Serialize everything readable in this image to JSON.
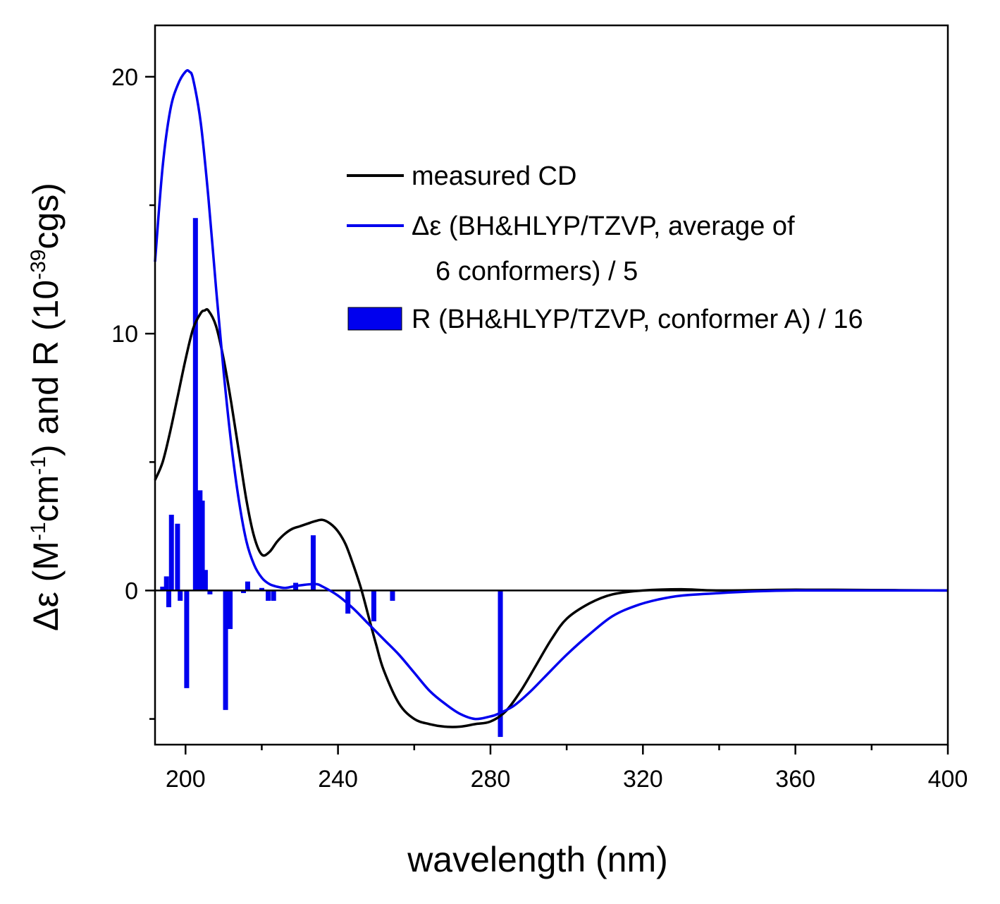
{
  "chart_data": {
    "type": "line",
    "xlabel": "wavelength (nm)",
    "ylabel": {
      "part1": "Δε (M",
      "sup1": "-1",
      "part2": "cm",
      "sup2": "-1",
      "part3": ") and R (10",
      "sup3": "-39",
      "part4": "cgs)"
    },
    "xlim": [
      192,
      400
    ],
    "ylim": [
      -6.0,
      22.0
    ],
    "x_ticks": [
      200,
      240,
      280,
      320,
      360,
      400
    ],
    "x_tick_labels": [
      "200",
      "240",
      "280",
      "320",
      "360",
      "400"
    ],
    "x_minor_ticks": [
      220,
      260,
      300,
      340,
      380
    ],
    "y_ticks": [
      0,
      10,
      20
    ],
    "y_tick_labels": [
      "0",
      "10",
      "20"
    ],
    "y_minor_ticks": [
      -5,
      5,
      15
    ],
    "colors": {
      "measured": "#000000",
      "calculated": "#0000ee",
      "bars": "#0000ee"
    },
    "series": [
      {
        "name": "measured CD",
        "kind": "line",
        "x": [
          192,
          194,
          196,
          198,
          200,
          202,
          204,
          205,
          206,
          208,
          210,
          212,
          214,
          216,
          218,
          220,
          222,
          224,
          226,
          228,
          230,
          232,
          234,
          236,
          238,
          240,
          242,
          244,
          246,
          248,
          250,
          252,
          256,
          260,
          264,
          268,
          272,
          276,
          280,
          284,
          288,
          292,
          296,
          300,
          306,
          312,
          320,
          330,
          340,
          360,
          380,
          400
        ],
        "y": [
          4.3,
          5.0,
          6.2,
          7.6,
          9.0,
          10.2,
          10.8,
          10.9,
          10.9,
          10.3,
          9.0,
          7.3,
          5.4,
          3.5,
          2.1,
          1.4,
          1.5,
          1.9,
          2.2,
          2.4,
          2.5,
          2.6,
          2.7,
          2.75,
          2.6,
          2.3,
          1.8,
          1.0,
          0.1,
          -1.0,
          -2.1,
          -3.1,
          -4.4,
          -5.0,
          -5.2,
          -5.3,
          -5.3,
          -5.2,
          -5.1,
          -4.7,
          -3.9,
          -2.9,
          -1.9,
          -1.1,
          -0.5,
          -0.15,
          0.0,
          0.05,
          0.0,
          0.03,
          0.02,
          0.0
        ]
      },
      {
        "name": "Δε (BH&HLYP/TZVP, average of 6 conformers) / 5",
        "kind": "line",
        "x": [
          192,
          194,
          196,
          198,
          200,
          201,
          202,
          204,
          206,
          208,
          210,
          212,
          214,
          216,
          218,
          220,
          222,
          224,
          226,
          228,
          230,
          234,
          236,
          240,
          244,
          248,
          252,
          256,
          260,
          264,
          268,
          272,
          276,
          280,
          282,
          286,
          290,
          294,
          300,
          306,
          312,
          318,
          324,
          330,
          340,
          350,
          360,
          380,
          400
        ],
        "y": [
          12.8,
          16.5,
          18.7,
          19.7,
          20.2,
          20.2,
          19.9,
          18.2,
          15.3,
          11.8,
          8.5,
          5.7,
          3.5,
          1.9,
          1.0,
          0.5,
          0.25,
          0.15,
          0.1,
          0.15,
          0.2,
          0.25,
          0.15,
          -0.2,
          -0.7,
          -1.3,
          -1.9,
          -2.5,
          -3.2,
          -3.9,
          -4.4,
          -4.8,
          -5.0,
          -4.9,
          -4.8,
          -4.5,
          -4.0,
          -3.4,
          -2.5,
          -1.7,
          -1.0,
          -0.6,
          -0.35,
          -0.2,
          -0.1,
          -0.03,
          0.0,
          0.0,
          0.0
        ]
      },
      {
        "name": "R (BH&HLYP/TZVP, conformer A) / 16",
        "kind": "bar",
        "width_nm": 1.3,
        "x": [
          194,
          195,
          195.6,
          196.3,
          197.9,
          198.6,
          200.3,
          202.6,
          203.8,
          204.4,
          205.2,
          206.4,
          210.5,
          211.7,
          215.2,
          216.3,
          220,
          221.7,
          223.1,
          228.9,
          233.5,
          242.6,
          249.4,
          254.3,
          282.6
        ],
        "y": [
          0.15,
          0.55,
          -0.65,
          2.95,
          2.6,
          -0.4,
          -3.8,
          14.5,
          3.9,
          3.5,
          0.8,
          -0.15,
          -4.65,
          -1.5,
          -0.1,
          0.35,
          0.1,
          -0.4,
          -0.4,
          0.3,
          2.15,
          -0.9,
          -1.2,
          -0.4,
          -5.7
        ]
      }
    ]
  }
}
